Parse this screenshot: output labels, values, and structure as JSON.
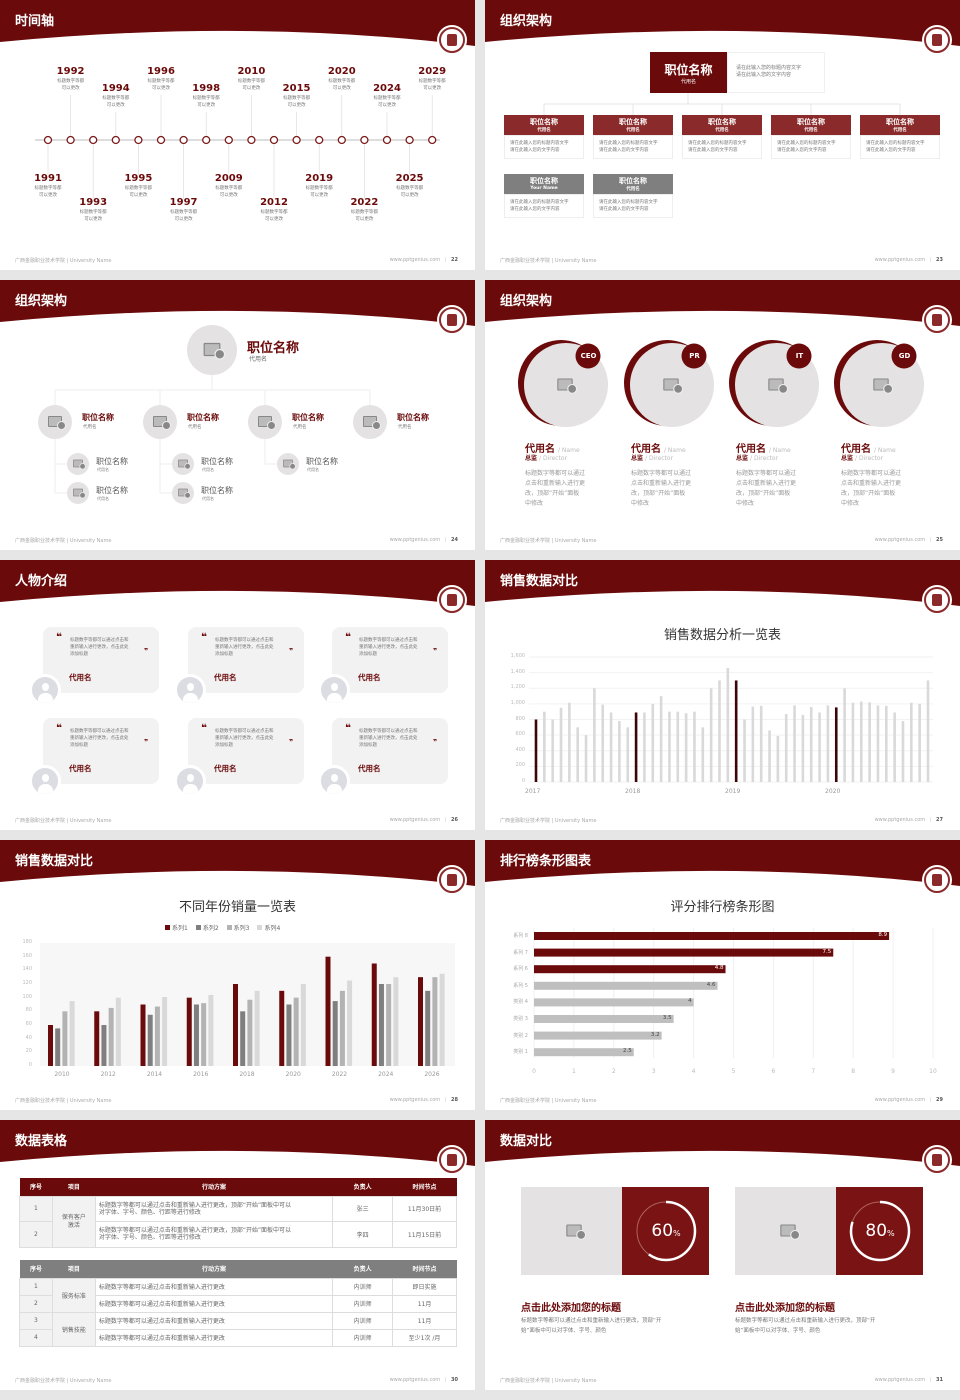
{
  "common": {
    "footer_left": "广西金融职业技术学院 | University Name",
    "footer_url": "www.pptgenius.com",
    "colors": {
      "primary": "#6b0a0a",
      "box_red": "#8b2a2a",
      "gray": "#7f7f7f",
      "light": "#e4e2e2"
    }
  },
  "slides": [
    {
      "title": "时间轴",
      "page": "22"
    },
    {
      "title": "组织架构",
      "page": "23"
    },
    {
      "title": "组织架构",
      "page": "24"
    },
    {
      "title": "组织架构",
      "page": "25"
    },
    {
      "title": "人物介绍",
      "page": "26"
    },
    {
      "title": "销售数据对比",
      "page": "27"
    },
    {
      "title": "销售数据对比",
      "page": "28"
    },
    {
      "title": "排行榜条形图表",
      "page": "29"
    },
    {
      "title": "数据表格",
      "page": "30"
    },
    {
      "title": "数据对比",
      "page": "31"
    }
  ],
  "timeline": {
    "desc": "标题数字等都\n可以更改",
    "items": [
      {
        "year": "1991",
        "side": "bottom",
        "level": 0
      },
      {
        "year": "1992",
        "side": "top",
        "level": 0
      },
      {
        "year": "1993",
        "side": "bottom",
        "level": 1
      },
      {
        "year": "1994",
        "side": "top",
        "level": 1
      },
      {
        "year": "1995",
        "side": "bottom",
        "level": 0
      },
      {
        "year": "1996",
        "side": "top",
        "level": 0
      },
      {
        "year": "1997",
        "side": "bottom",
        "level": 1
      },
      {
        "year": "1998",
        "side": "top",
        "level": 1
      },
      {
        "year": "2009",
        "side": "bottom",
        "level": 0
      },
      {
        "year": "2010",
        "side": "top",
        "level": 0
      },
      {
        "year": "2012",
        "side": "bottom",
        "level": 1
      },
      {
        "year": "2015",
        "side": "top",
        "level": 1
      },
      {
        "year": "2019",
        "side": "bottom",
        "level": 0
      },
      {
        "year": "2020",
        "side": "top",
        "level": 0
      },
      {
        "year": "2022",
        "side": "bottom",
        "level": 1
      },
      {
        "year": "2024",
        "side": "top",
        "level": 1
      },
      {
        "year": "2025",
        "side": "bottom",
        "level": 0
      },
      {
        "year": "2029",
        "side": "top",
        "level": 0
      }
    ]
  },
  "org1": {
    "top": {
      "title": "职位名称",
      "sub": "代用名",
      "desc": "请在此输入您的标题内容文字\n请在此输入您的文字内容"
    },
    "boxes": [
      {
        "title": "职位名称",
        "sub": "代用名",
        "desc": "请在此输入您的标题内容文字\n请在此输入您的文字内容",
        "color": "red"
      },
      {
        "title": "职位名称",
        "sub": "代用名",
        "desc": "请在此输入您的标题内容文字\n请在此输入您的文字内容",
        "color": "red"
      },
      {
        "title": "职位名称",
        "sub": "代用名",
        "desc": "请在此输入您的标题内容文字\n请在此输入您的文字内容",
        "color": "red"
      },
      {
        "title": "职位名称",
        "sub": "代用名",
        "desc": "请在此输入您的标题内容文字\n请在此输入您的文字内容",
        "color": "red"
      },
      {
        "title": "职位名称",
        "sub": "代用名",
        "desc": "请在此输入您的标题内容文字\n请在此输入您的文字内容",
        "color": "red"
      },
      {
        "title": "职位名称",
        "sub": "Your Name",
        "desc": "请在此输入您的标题内容文字\n请在此输入您的文字内容",
        "color": "gray"
      },
      {
        "title": "职位名称",
        "sub": "代用名",
        "desc": "请在此输入您的标题内容文字\n请在此输入您的文字内容",
        "color": "gray"
      }
    ]
  },
  "org2": {
    "top": {
      "title": "职位名称",
      "sub": "代用名"
    },
    "mids": [
      {
        "title": "职位名称",
        "sub": "代用名",
        "subs": [
          {
            "title": "职位名称",
            "sub": "代用名"
          },
          {
            "title": "职位名称",
            "sub": "代用名"
          }
        ]
      },
      {
        "title": "职位名称",
        "sub": "代用名",
        "subs": [
          {
            "title": "职位名称",
            "sub": "代用名"
          },
          {
            "title": "职位名称",
            "sub": "代用名"
          }
        ]
      },
      {
        "title": "职位名称",
        "sub": "代用名",
        "subs": [
          {
            "title": "职位名称",
            "sub": "代用名"
          }
        ]
      },
      {
        "title": "职位名称",
        "sub": "代用名",
        "subs": []
      }
    ]
  },
  "team": {
    "members": [
      {
        "badge": "CEO",
        "name": "代用名",
        "name_en": "/ Name",
        "role": "总监",
        "role_en": "/  Director",
        "desc": "标题数字等都可以通过\n点击和重新输入进行更\n改，顶部“开始”面板\n中修改"
      },
      {
        "badge": "PR",
        "name": "代用名",
        "name_en": "/ Name",
        "role": "总监",
        "role_en": "/  Director",
        "desc": "标题数字等都可以通过\n点击和重新输入进行更\n改，顶部“开始”面板\n中修改"
      },
      {
        "badge": "IT",
        "name": "代用名",
        "name_en": "/ Name",
        "role": "总监",
        "role_en": "/  Director",
        "desc": "标题数字等都可以通过\n点击和重新输入进行更\n改，顶部“开始”面板\n中修改"
      },
      {
        "badge": "GD",
        "name": "代用名",
        "name_en": "/ Name",
        "role": "总监",
        "role_en": "/  Director",
        "desc": "标题数字等都可以通过\n点击和重新输入进行更\n改，顶部“开始”面板\n中修改"
      }
    ]
  },
  "testimonials": {
    "items": [
      {
        "quote": "标题数字等都可以通过点击和\n重新输入进行更改，点击此处\n添加标题",
        "name": "代用名"
      },
      {
        "quote": "标题数字等都可以通过点击和\n重新输入进行更改，点击此处\n添加标题",
        "name": "代用名"
      },
      {
        "quote": "标题数字等都可以通过点击和\n重新输入进行更改，点击此处\n添加标题",
        "name": "代用名"
      },
      {
        "quote": "标题数字等都可以通过点击和\n重新输入进行更改，点击此处\n添加标题",
        "name": "代用名"
      },
      {
        "quote": "标题数字等都可以通过点击和\n重新输入进行更改，点击此处\n添加标题",
        "name": "代用名"
      },
      {
        "quote": "标题数字等都可以通过点击和\n重新输入进行更改，点击此处\n添加标题",
        "name": "代用名"
      }
    ],
    "open_quote": "❝",
    "close_quote": "❞"
  },
  "chart_data": [
    {
      "type": "bar",
      "title": "销售数据分析一览表",
      "ylim": [
        0,
        1600
      ],
      "yticks": [
        "0",
        "200",
        "400",
        "600",
        "800",
        "1,000",
        "1,200",
        "1,400",
        "1,600"
      ],
      "x_labels": [
        "2017",
        "2018",
        "2019",
        "2020"
      ],
      "highlight_indices": [
        0,
        12,
        24,
        36
      ],
      "grid": true,
      "values": [
        800,
        900,
        800,
        950,
        1015,
        700,
        600,
        1200,
        990,
        890,
        780,
        700,
        890,
        890,
        1000,
        1100,
        900,
        900,
        880,
        900,
        700,
        1200,
        1300,
        1460,
        1300,
        800,
        965,
        975,
        660,
        590,
        870,
        980,
        860,
        960,
        890,
        980,
        955,
        1200,
        1015,
        1030,
        1020,
        980,
        975,
        890,
        780,
        1015,
        1000,
        1300
      ],
      "colors": {
        "highlight": "#3d0508",
        "normal": "#d9d9d9"
      }
    },
    {
      "type": "bar",
      "title": "不同年份销量一览表",
      "legend": "top",
      "ylim": [
        0,
        180
      ],
      "yticks": [
        "0",
        "20",
        "40",
        "60",
        "80",
        "100",
        "120",
        "140",
        "160",
        "180"
      ],
      "categories": [
        "2010",
        "2012",
        "2014",
        "2016",
        "2018",
        "2020",
        "2022",
        "2024",
        "2026"
      ],
      "series": [
        {
          "name": "系列1",
          "color": "#6b0a0a",
          "values": [
            60,
            80,
            90,
            100,
            120,
            110,
            160,
            150,
            130
          ]
        },
        {
          "name": "系列2",
          "color": "#7f7f7f",
          "values": [
            55,
            60,
            75,
            90,
            80,
            90,
            95,
            120,
            110
          ]
        },
        {
          "name": "系列3",
          "color": "#b3b3b3",
          "values": [
            80,
            85,
            87,
            92,
            97,
            100,
            110,
            120,
            130
          ]
        },
        {
          "name": "系列4",
          "color": "#d9d9d9",
          "values": [
            95,
            100,
            101,
            104,
            110,
            120,
            125,
            130,
            135
          ]
        }
      ]
    },
    {
      "type": "bar",
      "orientation": "horizontal",
      "title": "评分排行榜条形图",
      "xlim": [
        0,
        10
      ],
      "xticks": [
        "0",
        "1",
        "2",
        "3",
        "4",
        "5",
        "6",
        "7",
        "8",
        "9",
        "10"
      ],
      "categories": [
        "系列 8",
        "系列 7",
        "系列 6",
        "系列 5",
        "类别 4",
        "类别 3",
        "类别 2",
        "类别 1"
      ],
      "values": [
        8.9,
        7.5,
        4.8,
        4.6,
        4,
        3.5,
        3.2,
        2.5
      ],
      "labels": [
        "8.9",
        "7.5",
        "4.8",
        "4.6",
        "4",
        "3.5",
        "3.2",
        "2.5"
      ],
      "colors": [
        "#6b0a0a",
        "#6b0a0a",
        "#6b0a0a",
        "#bfbfbf",
        "#bfbfbf",
        "#bfbfbf",
        "#bfbfbf",
        "#bfbfbf"
      ]
    }
  ],
  "table": {
    "headers": [
      "序号",
      "项目",
      "行动方案",
      "负责人",
      "时间节点"
    ],
    "t1": {
      "group": "保有客户\n激活",
      "rows": [
        {
          "no": "1",
          "plan": "标题数字等都可以通过点击和重新输入进行更改，顶部“开始”面板中可以\n对字体、字号、颜色、行距等进行修改",
          "person": "张三",
          "time": "11月30日前"
        },
        {
          "no": "2",
          "plan": "标题数字等都可以通过点击和重新输入进行更改，顶部“开始”面板中可以\n对字体、字号、颜色、行距等进行修改",
          "person": "李四",
          "time": "11月15日前"
        }
      ]
    },
    "t2": {
      "groups": [
        "服务标准",
        "销售技能"
      ],
      "rows": [
        {
          "no": "1",
          "plan": "标题数字等都可以通过点击和重新输入进行更改",
          "person": "内训师",
          "time": "即日实施"
        },
        {
          "no": "2",
          "plan": "标题数字等都可以通过点击和重新输入进行更改",
          "person": "内训师",
          "time": "11月"
        },
        {
          "no": "3",
          "plan": "标题数字等都可以通过点击和重新输入进行更改",
          "person": "内训师",
          "time": "11月"
        },
        {
          "no": "4",
          "plan": "标题数字等都可以通过点击和重新输入进行更改",
          "person": "内训师",
          "time": "至少1次 /月"
        }
      ]
    }
  },
  "compare": {
    "items": [
      {
        "percent": 60,
        "value": "60",
        "unit": "%",
        "title": "点击此处添加您的标题",
        "desc": "标题数字等都可以通过点击和重新输入进行更改，顶部“开\n始”面板中可以对字体、字号、颜色"
      },
      {
        "percent": 80,
        "value": "80",
        "unit": "%",
        "title": "点击此处添加您的标题",
        "desc": "标题数字等都可以通过点击和重新输入进行更改，顶部“开\n始”面板中可以对字体、字号、颜色"
      }
    ]
  }
}
